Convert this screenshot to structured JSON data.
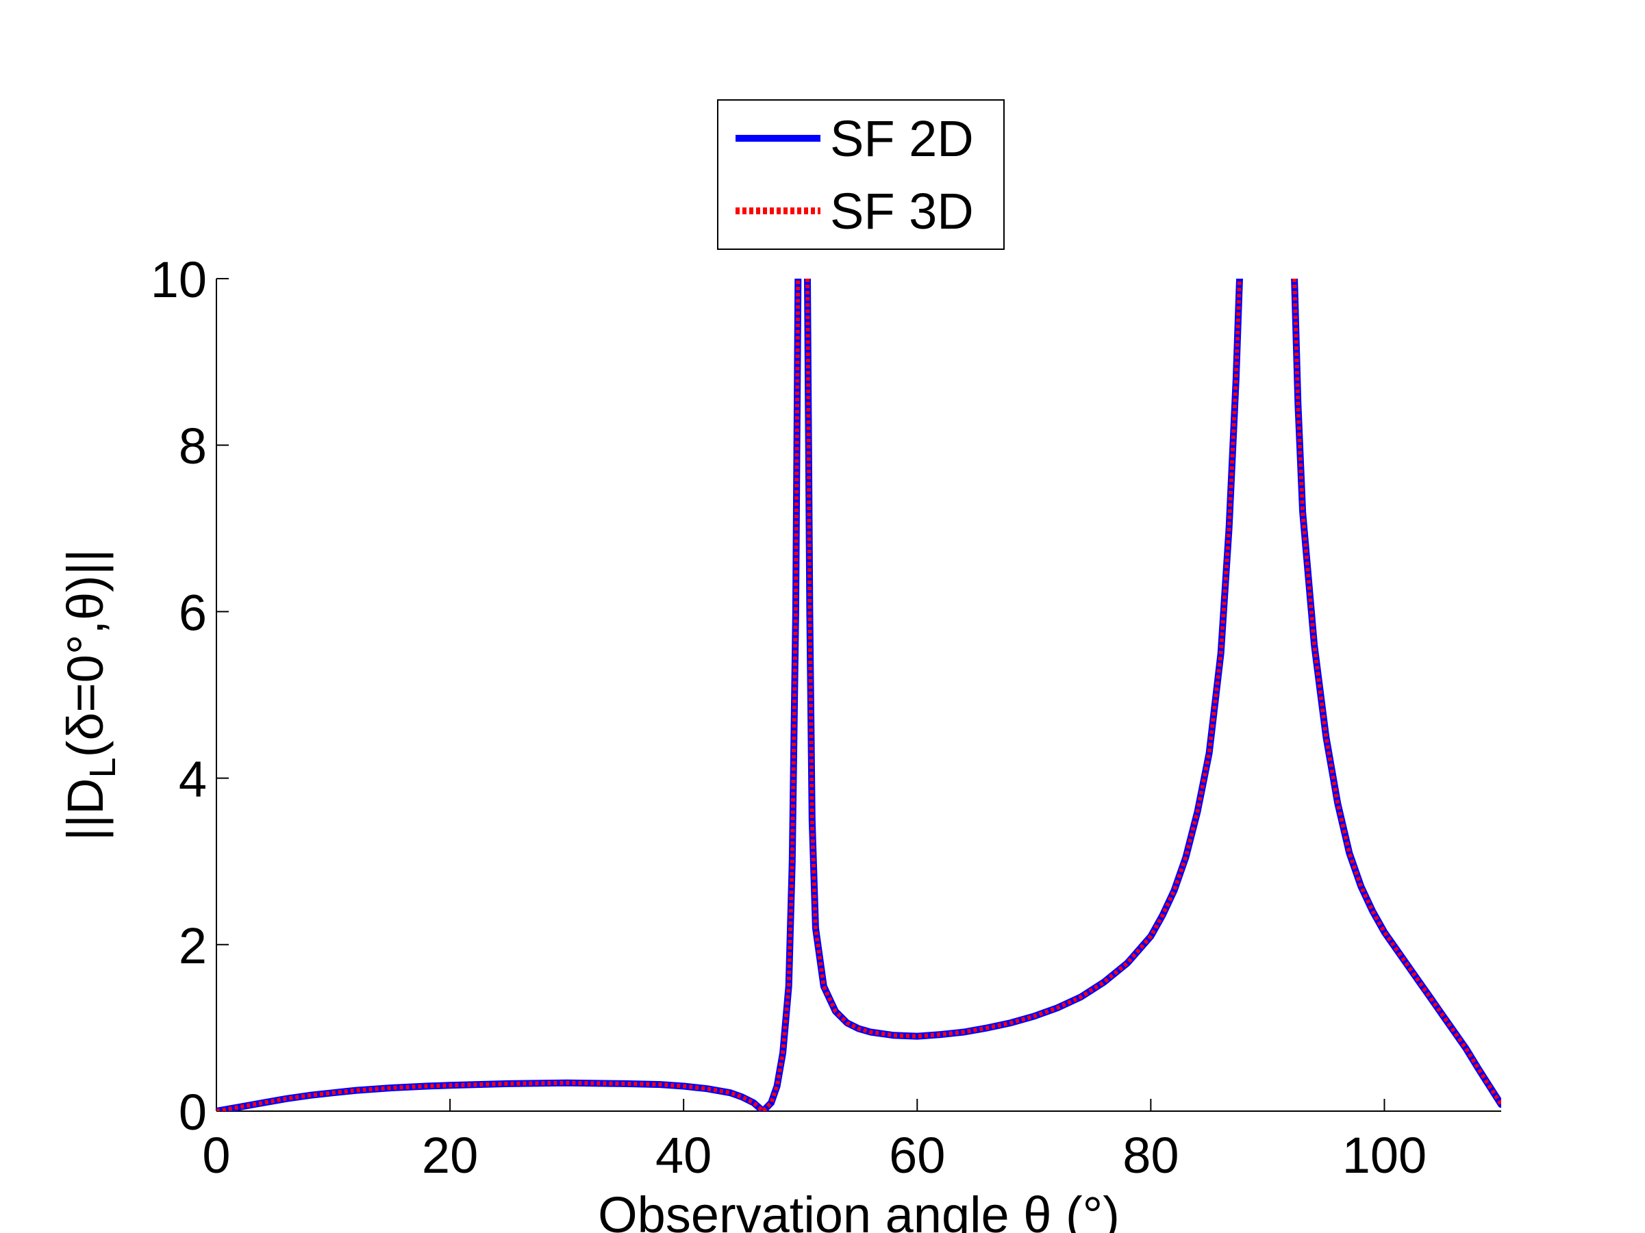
{
  "chart_data": {
    "type": "line",
    "xlabel": "Observation angle θ (°)",
    "ylabel": "||D_L(δ=0°,θ)||",
    "xlim": [
      0,
      110
    ],
    "ylim": [
      0,
      10
    ],
    "xticks": [
      0,
      20,
      40,
      60,
      80,
      100
    ],
    "yticks": [
      0,
      2,
      4,
      6,
      8,
      10
    ],
    "xtick_labels": [
      "0",
      "20",
      "40",
      "60",
      "80",
      "100"
    ],
    "ytick_labels": [
      "0",
      "2",
      "4",
      "6",
      "8",
      "10"
    ],
    "grid": false,
    "legend_position": "top-center, outside plot",
    "series": [
      {
        "name": "SF 2D",
        "color": "#0000ff",
        "style": "solid",
        "segments": [
          [
            [
              0,
              0
            ],
            [
              2,
              0.05
            ],
            [
              4,
              0.1
            ],
            [
              6,
              0.15
            ],
            [
              8,
              0.19
            ],
            [
              10,
              0.22
            ],
            [
              12,
              0.25
            ],
            [
              15,
              0.28
            ],
            [
              18,
              0.3
            ],
            [
              20,
              0.31
            ],
            [
              25,
              0.33
            ],
            [
              30,
              0.34
            ],
            [
              35,
              0.33
            ],
            [
              38,
              0.32
            ],
            [
              40,
              0.3
            ],
            [
              42,
              0.27
            ],
            [
              44,
              0.22
            ],
            [
              45,
              0.17
            ],
            [
              46,
              0.1
            ],
            [
              46.8,
              0
            ],
            [
              47.5,
              0.1
            ],
            [
              48,
              0.3
            ],
            [
              48.5,
              0.7
            ],
            [
              49,
              1.5
            ],
            [
              49.3,
              3
            ],
            [
              49.6,
              6
            ],
            [
              49.8,
              10
            ]
          ],
          [
            [
              50.6,
              10
            ],
            [
              50.8,
              6
            ],
            [
              51,
              3.5
            ],
            [
              51.3,
              2.2
            ],
            [
              52,
              1.5
            ],
            [
              53,
              1.2
            ],
            [
              54,
              1.06
            ],
            [
              55,
              0.99
            ],
            [
              56,
              0.95
            ],
            [
              58,
              0.91
            ],
            [
              60,
              0.9
            ],
            [
              62,
              0.92
            ],
            [
              64,
              0.95
            ],
            [
              66,
              1
            ],
            [
              68,
              1.06
            ],
            [
              70,
              1.14
            ],
            [
              72,
              1.24
            ],
            [
              74,
              1.37
            ],
            [
              76,
              1.55
            ],
            [
              78,
              1.78
            ],
            [
              80,
              2.1
            ],
            [
              81,
              2.35
            ],
            [
              82,
              2.65
            ],
            [
              83,
              3.05
            ],
            [
              84,
              3.6
            ],
            [
              85,
              4.3
            ],
            [
              86,
              5.5
            ],
            [
              86.7,
              7
            ],
            [
              87.3,
              8.8
            ],
            [
              87.6,
              10
            ]
          ],
          [
            [
              92.3,
              10
            ],
            [
              92.6,
              8.5
            ],
            [
              93,
              7.2
            ],
            [
              94,
              5.6
            ],
            [
              95,
              4.5
            ],
            [
              96,
              3.7
            ],
            [
              97,
              3.1
            ],
            [
              98,
              2.7
            ],
            [
              99,
              2.4
            ],
            [
              100,
              2.15
            ],
            [
              101,
              1.95
            ],
            [
              102,
              1.75
            ],
            [
              103,
              1.55
            ],
            [
              104,
              1.35
            ],
            [
              105,
              1.15
            ],
            [
              106,
              0.95
            ],
            [
              107,
              0.75
            ],
            [
              108,
              0.52
            ],
            [
              109,
              0.3
            ],
            [
              110,
              0.08
            ]
          ]
        ]
      },
      {
        "name": "SF 3D",
        "color": "#ff0000",
        "style": "dotted",
        "segments": [
          [
            [
              0,
              0
            ],
            [
              2,
              0.05
            ],
            [
              4,
              0.1
            ],
            [
              6,
              0.15
            ],
            [
              8,
              0.19
            ],
            [
              10,
              0.22
            ],
            [
              12,
              0.25
            ],
            [
              15,
              0.28
            ],
            [
              18,
              0.3
            ],
            [
              20,
              0.31
            ],
            [
              25,
              0.33
            ],
            [
              30,
              0.34
            ],
            [
              35,
              0.33
            ],
            [
              38,
              0.32
            ],
            [
              40,
              0.3
            ],
            [
              42,
              0.27
            ],
            [
              44,
              0.22
            ],
            [
              45,
              0.17
            ],
            [
              46,
              0.1
            ],
            [
              46.8,
              0
            ],
            [
              47.5,
              0.1
            ],
            [
              48,
              0.3
            ],
            [
              48.5,
              0.7
            ],
            [
              49,
              1.5
            ],
            [
              49.3,
              3
            ],
            [
              49.6,
              6
            ],
            [
              49.8,
              10
            ]
          ],
          [
            [
              50.6,
              10
            ],
            [
              50.8,
              6
            ],
            [
              51,
              3.5
            ],
            [
              51.3,
              2.2
            ],
            [
              52,
              1.5
            ],
            [
              53,
              1.2
            ],
            [
              54,
              1.06
            ],
            [
              55,
              0.99
            ],
            [
              56,
              0.95
            ],
            [
              58,
              0.91
            ],
            [
              60,
              0.9
            ],
            [
              62,
              0.92
            ],
            [
              64,
              0.95
            ],
            [
              66,
              1
            ],
            [
              68,
              1.06
            ],
            [
              70,
              1.14
            ],
            [
              72,
              1.24
            ],
            [
              74,
              1.37
            ],
            [
              76,
              1.55
            ],
            [
              78,
              1.78
            ],
            [
              80,
              2.1
            ],
            [
              81,
              2.35
            ],
            [
              82,
              2.65
            ],
            [
              83,
              3.05
            ],
            [
              84,
              3.6
            ],
            [
              85,
              4.3
            ],
            [
              86,
              5.5
            ],
            [
              86.7,
              7
            ],
            [
              87.3,
              8.8
            ],
            [
              87.6,
              10
            ]
          ],
          [
            [
              92.3,
              10
            ],
            [
              92.6,
              8.5
            ],
            [
              93,
              7.2
            ],
            [
              94,
              5.6
            ],
            [
              95,
              4.5
            ],
            [
              96,
              3.7
            ],
            [
              97,
              3.1
            ],
            [
              98,
              2.7
            ],
            [
              99,
              2.4
            ],
            [
              100,
              2.15
            ],
            [
              101,
              1.95
            ],
            [
              102,
              1.75
            ],
            [
              103,
              1.55
            ],
            [
              104,
              1.35
            ],
            [
              105,
              1.15
            ],
            [
              106,
              0.95
            ],
            [
              107,
              0.75
            ],
            [
              108,
              0.52
            ],
            [
              109,
              0.3
            ],
            [
              110,
              0.08
            ]
          ]
        ]
      }
    ]
  }
}
